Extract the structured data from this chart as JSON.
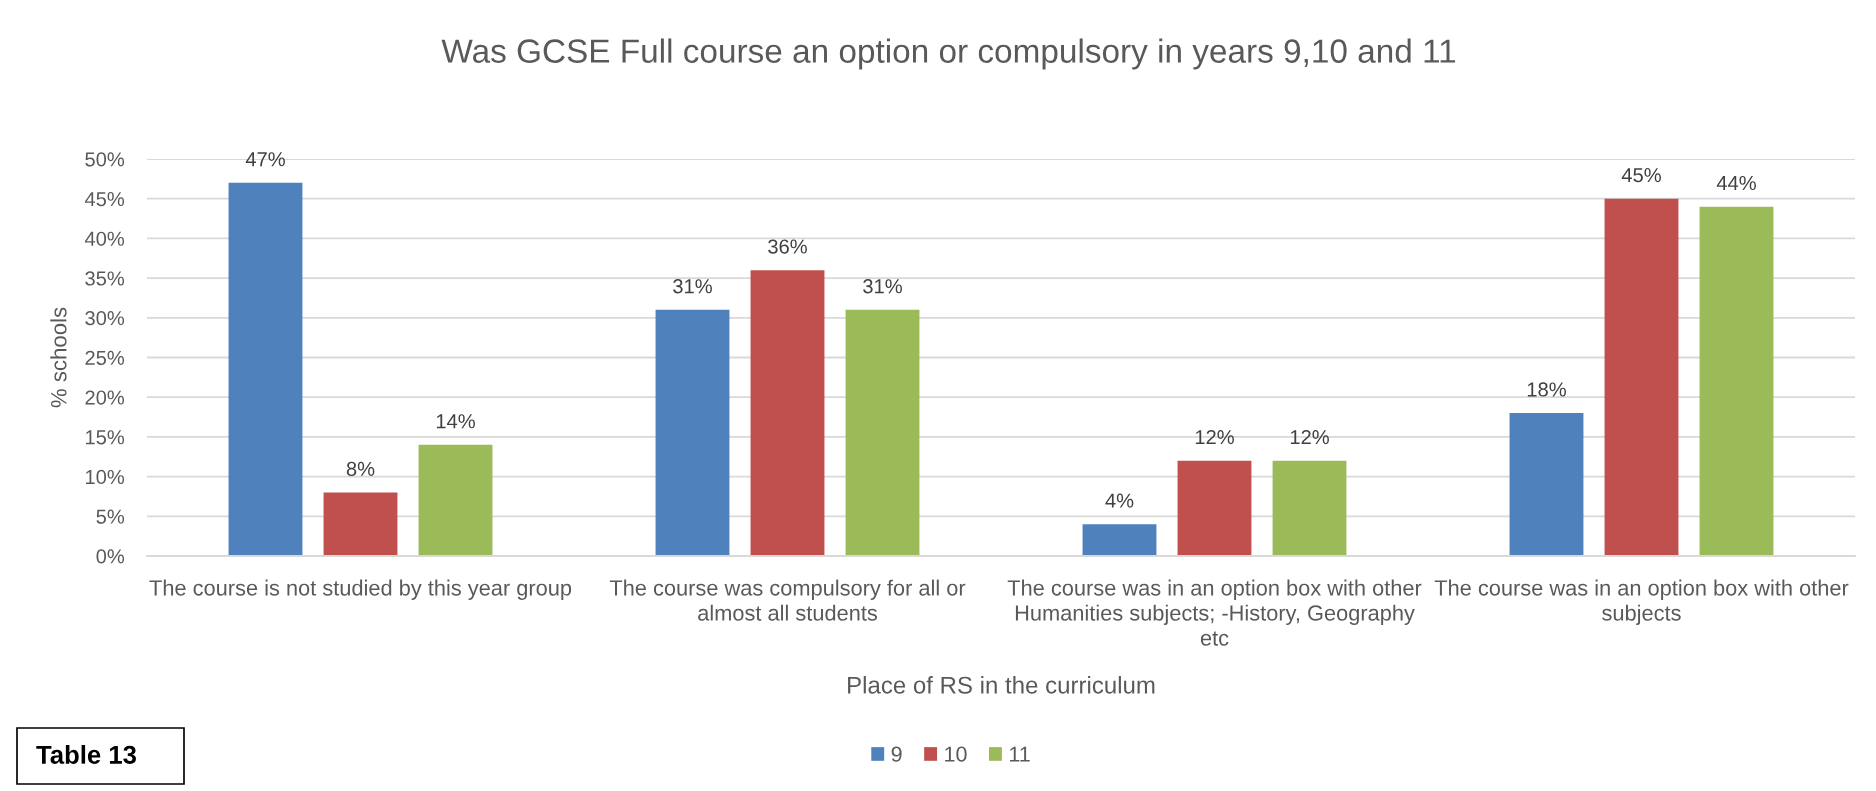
{
  "chart_data": {
    "type": "bar",
    "title": "Was GCSE Full course an option or compulsory in years 9,10 and 11",
    "xlabel": "Place of RS in the curriculum",
    "ylabel": "% schools",
    "categories": [
      "The course is not studied by this year group",
      "The course was compulsory for all or almost all students",
      "The course was in an option box with other Humanities subjects; -History, Geography etc",
      "The course was in an option box with other subjects"
    ],
    "series": [
      {
        "name": "9",
        "color": "#4f81bd",
        "values": [
          47,
          31,
          4,
          18
        ],
        "value_labels": [
          "47%",
          "31%",
          "4%",
          "18%"
        ]
      },
      {
        "name": "10",
        "color": "#c0504d",
        "values": [
          8,
          36,
          12,
          45
        ],
        "value_labels": [
          "8%",
          "36%",
          "12%",
          "45%"
        ]
      },
      {
        "name": "11",
        "color": "#9bbb59",
        "values": [
          14,
          31,
          12,
          44
        ],
        "value_labels": [
          "14%",
          "31%",
          "12%",
          "44%"
        ]
      }
    ],
    "ylim": [
      0,
      50
    ],
    "yticks": [
      {
        "value": 0,
        "label": "0%"
      },
      {
        "value": 5,
        "label": "5%"
      },
      {
        "value": 10,
        "label": "10%"
      },
      {
        "value": 15,
        "label": "15%"
      },
      {
        "value": 20,
        "label": "20%"
      },
      {
        "value": 25,
        "label": "25%"
      },
      {
        "value": 30,
        "label": "30%"
      },
      {
        "value": 35,
        "label": "35%"
      },
      {
        "value": 40,
        "label": "40%"
      },
      {
        "value": 45,
        "label": "45%"
      },
      {
        "value": 50,
        "label": "50%"
      }
    ],
    "grid": "y",
    "legend": "bottom",
    "annotations": [
      "Table 13"
    ]
  }
}
